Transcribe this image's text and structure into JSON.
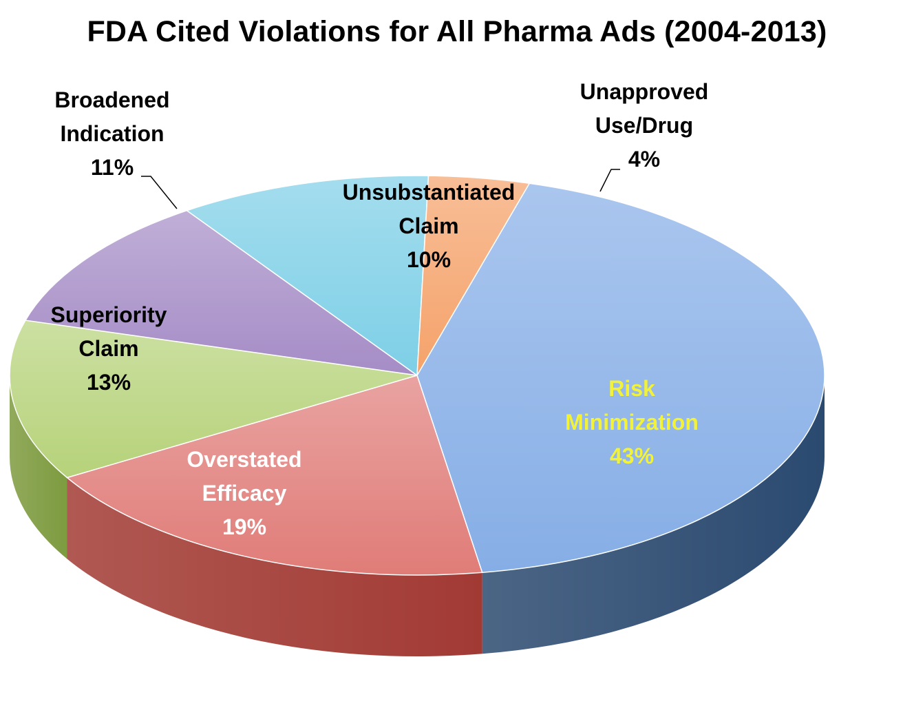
{
  "title": "FDA Cited Violations for All Pharma Ads (2004-2013)",
  "chart_data": {
    "type": "pie",
    "title": "FDA Cited Violations for All Pharma Ads (2004-2013)",
    "slices": [
      {
        "label_lines": [
          "Risk",
          "Minimization"
        ],
        "percent_label": "43%",
        "value": 43,
        "top_color": "#86aee6",
        "side_color": "#2b4a70",
        "label_color": "#f2f23a"
      },
      {
        "label_lines": [
          "Overstated",
          "Efficacy"
        ],
        "percent_label": "19%",
        "value": 19,
        "top_color": "#e07c78",
        "side_color": "#a23a34",
        "label_color": "#ffffff"
      },
      {
        "label_lines": [
          "Superiority",
          "Claim"
        ],
        "percent_label": "13%",
        "value": 13,
        "top_color": "#b6d27a",
        "side_color": "#7d9b3f",
        "label_color": "#000000"
      },
      {
        "label_lines": [
          "Broadened",
          "Indication"
        ],
        "percent_label": "11%",
        "value": 11,
        "top_color": "#a58cc6",
        "side_color": "#6a5590",
        "label_color": "#000000"
      },
      {
        "label_lines": [
          "Unsubstantiated",
          "Claim"
        ],
        "percent_label": "10%",
        "value": 10,
        "top_color": "#7dcfe6",
        "side_color": "#3f93ab",
        "label_color": "#000000"
      },
      {
        "label_lines": [
          "Unapproved",
          "Use/Drug"
        ],
        "percent_label": "4%",
        "value": 4,
        "top_color": "#f5a26a",
        "side_color": "#c06a2c",
        "label_color": "#000000"
      }
    ],
    "legend": "none",
    "style": "3d-exploded-labels"
  }
}
